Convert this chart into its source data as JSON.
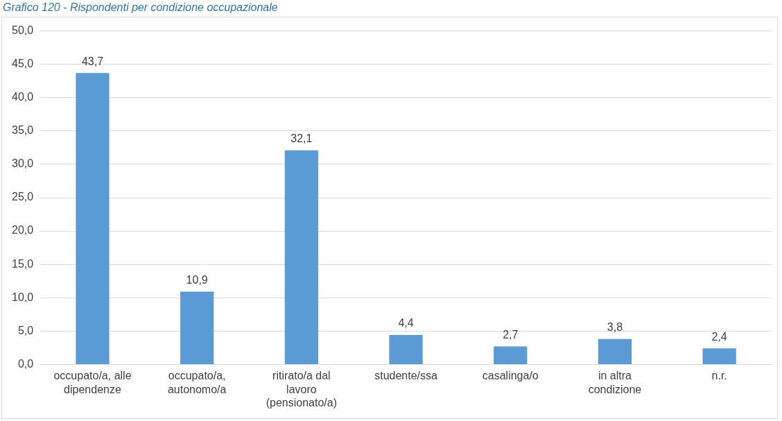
{
  "chart_data": {
    "type": "bar",
    "title": "Grafico 120 - Rispondenti per condizione occupazionale",
    "categories": [
      "occupato/a, alle dipendenze",
      "occupato/a, autonomo/a",
      "ritirato/a dal lavoro (pensionato/a)",
      "studente/ssa",
      "casalinga/o",
      "in altra condizione",
      "n.r."
    ],
    "values": [
      43.7,
      10.9,
      32.1,
      4.4,
      2.7,
      3.8,
      2.4
    ],
    "color": "#5b9bd5",
    "ylim": [
      0,
      50
    ],
    "yticks": [
      {
        "value": 0,
        "label": "0,0"
      },
      {
        "value": 5,
        "label": "5,0"
      },
      {
        "value": 10,
        "label": "10,0"
      },
      {
        "value": 15,
        "label": "15,0"
      },
      {
        "value": 20,
        "label": "20,0"
      },
      {
        "value": 25,
        "label": "25,0"
      },
      {
        "value": 30,
        "label": "30,0"
      },
      {
        "value": 35,
        "label": "35,0"
      },
      {
        "value": 40,
        "label": "40,0"
      },
      {
        "value": 45,
        "label": "45,0"
      },
      {
        "value": 50,
        "label": "50,0"
      }
    ],
    "grid": "y",
    "value_labels": [
      "43,7",
      "10,9",
      "32,1",
      "4,4",
      "2,7",
      "3,8",
      "2,4"
    ],
    "legend": false
  }
}
